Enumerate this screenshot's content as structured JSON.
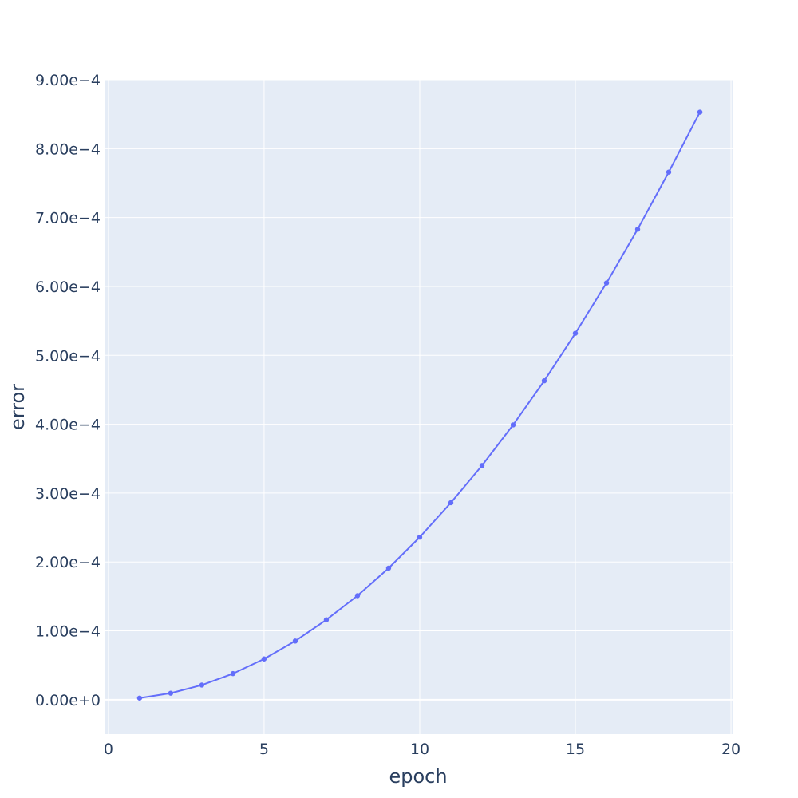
{
  "chart_data": {
    "type": "line",
    "xlabel": "epoch",
    "ylabel": "error",
    "xlim": [
      -0.1,
      20.05
    ],
    "ylim": [
      -5e-05,
      0.0009
    ],
    "x_ticks": [
      0,
      5,
      10,
      15,
      20
    ],
    "x_tick_labels": [
      "0",
      "5",
      "10",
      "15",
      "20"
    ],
    "y_ticks": [
      0,
      0.0001,
      0.0002,
      0.0003,
      0.0004,
      0.0005,
      0.0006,
      0.0007,
      0.0008,
      0.0009
    ],
    "y_tick_labels": [
      "0.00e+0",
      "1.00e−4",
      "2.00e−4",
      "3.00e−4",
      "4.00e−4",
      "5.00e−4",
      "6.00e−4",
      "7.00e−4",
      "8.00e−4",
      "9.00e−4"
    ],
    "grid": true,
    "series": [
      {
        "x": [
          1,
          2,
          3,
          4,
          5,
          6,
          7,
          8,
          9,
          10,
          11,
          12,
          13,
          14,
          15,
          16,
          17,
          18,
          19
        ],
        "y": [
          2.4e-06,
          9.5e-06,
          2.13e-05,
          3.79e-05,
          5.92e-05,
          8.52e-05,
          0.000116,
          0.000151,
          0.000191,
          0.000236,
          0.000286,
          0.00034,
          0.000399,
          0.000463,
          0.000532,
          0.000605,
          0.000683,
          0.000766,
          0.000853
        ],
        "color": "#636efa",
        "mode": "lines+markers"
      }
    ]
  },
  "colors": {
    "plot_bg": "#e5ecf6",
    "grid": "#ffffff",
    "text": "#2a3f5f"
  }
}
